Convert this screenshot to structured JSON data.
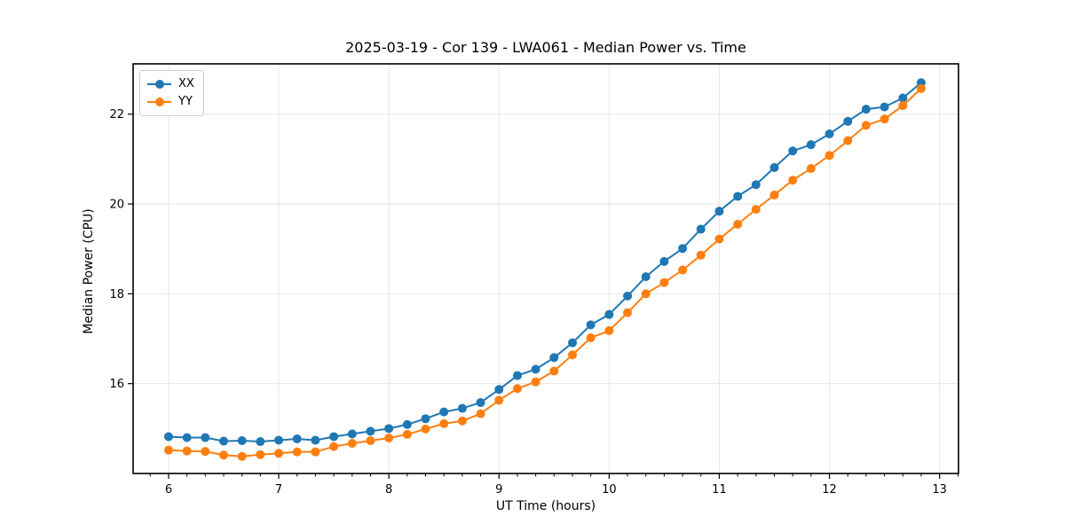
{
  "title": "2025-03-19 - Cor 139 - LWA061 - Median Power vs. Time",
  "axes": {
    "xlabel": "UT Time (hours)",
    "ylabel": "Median Power (CPU)",
    "x_ticks": [
      6,
      7,
      8,
      9,
      10,
      11,
      12,
      13
    ],
    "y_ticks": [
      16,
      18,
      20,
      22
    ],
    "xlim": [
      5.678,
      13.172
    ],
    "ylim": [
      14.0,
      23.12
    ],
    "x_minor_step": 0.16667,
    "grid": "major",
    "grid_color": "#e6e6e6",
    "spine_color": "#000000",
    "tick_color": "#000000"
  },
  "legend": {
    "position": "upper-left",
    "entries": [
      "XX",
      "YY"
    ]
  },
  "chart_data": {
    "type": "line",
    "title": "2025-03-19 - Cor 139 - LWA061 - Median Power vs. Time",
    "xlabel": "UT Time (hours)",
    "ylabel": "Median Power (CPU)",
    "x": [
      6.0,
      6.167,
      6.333,
      6.5,
      6.667,
      6.833,
      7.0,
      7.167,
      7.333,
      7.5,
      7.667,
      7.833,
      8.0,
      8.167,
      8.333,
      8.5,
      8.667,
      8.833,
      9.0,
      9.167,
      9.333,
      9.5,
      9.667,
      9.833,
      10.0,
      10.167,
      10.333,
      10.5,
      10.667,
      10.833,
      11.0,
      11.167,
      11.333,
      11.5,
      11.667,
      11.833,
      12.0,
      12.167,
      12.333,
      12.5,
      12.667,
      12.833
    ],
    "series": [
      {
        "name": "XX",
        "color": "#1f77b4",
        "values": [
          14.82,
          14.8,
          14.8,
          14.72,
          14.73,
          14.71,
          14.74,
          14.77,
          14.74,
          14.82,
          14.88,
          14.94,
          15.0,
          15.09,
          15.22,
          15.37,
          15.45,
          15.58,
          15.87,
          16.18,
          16.32,
          16.58,
          16.91,
          17.31,
          17.54,
          17.95,
          18.38,
          18.72,
          19.01,
          19.44,
          19.84,
          20.17,
          20.43,
          20.81,
          21.18,
          21.32,
          21.56,
          21.84,
          22.11,
          22.16,
          22.36,
          22.7
        ]
      },
      {
        "name": "YY",
        "color": "#ff7f0e",
        "values": [
          14.52,
          14.5,
          14.49,
          14.41,
          14.38,
          14.42,
          14.45,
          14.48,
          14.48,
          14.6,
          14.67,
          14.73,
          14.79,
          14.87,
          14.99,
          15.11,
          15.17,
          15.33,
          15.63,
          15.89,
          16.04,
          16.28,
          16.64,
          17.02,
          17.18,
          17.58,
          18.0,
          18.25,
          18.53,
          18.86,
          19.22,
          19.55,
          19.88,
          20.2,
          20.53,
          20.79,
          21.08,
          21.41,
          21.75,
          21.89,
          22.19,
          22.57
        ]
      }
    ],
    "marker": "circle",
    "legend_position": "upper-left",
    "grid": true
  }
}
